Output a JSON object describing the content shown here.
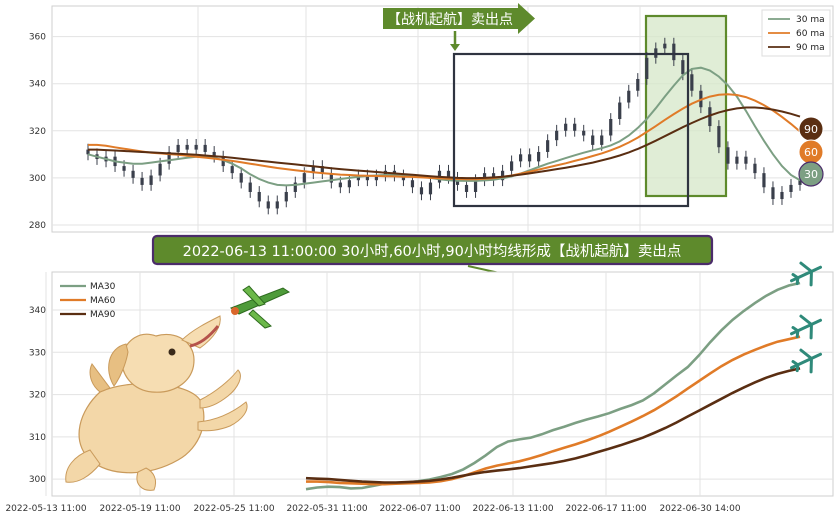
{
  "top_annotation": "【战机起航】卖出点",
  "banner": "2022-06-13 11:00:00 30小时,60小时,90小时均线形成【战机起航】卖出点",
  "colors": {
    "ma30": "#7c9f83",
    "ma60": "#e07b28",
    "ma90": "#5a2e12",
    "candle": "#3a3f4b",
    "highlight_fill": "#d6e7c8",
    "highlight_stroke": "#5e8a2c",
    "banner_fill": "#5e8a2c",
    "banner_stroke": "#4b2c6a"
  },
  "chart_data": [
    {
      "type": "candlestick",
      "ylim": [
        277,
        373
      ],
      "yticks": [
        280,
        300,
        320,
        340,
        360
      ],
      "grid": true,
      "legend_position": "top-right",
      "legend": [
        "30 ma",
        "60 ma",
        "90 ma"
      ],
      "end_badges": [
        "90",
        "60",
        "30"
      ],
      "candles": [
        {
          "i": 0,
          "o": 312,
          "c": 310
        },
        {
          "i": 1,
          "o": 310,
          "c": 308
        },
        {
          "i": 2,
          "o": 307,
          "c": 309
        },
        {
          "i": 3,
          "o": 309,
          "c": 305
        },
        {
          "i": 4,
          "o": 305,
          "c": 303
        },
        {
          "i": 5,
          "o": 303,
          "c": 300
        },
        {
          "i": 6,
          "o": 300,
          "c": 297
        },
        {
          "i": 7,
          "o": 297,
          "c": 301
        },
        {
          "i": 8,
          "o": 301,
          "c": 306
        },
        {
          "i": 9,
          "o": 306,
          "c": 311
        },
        {
          "i": 10,
          "o": 311,
          "c": 314
        },
        {
          "i": 11,
          "o": 314,
          "c": 312
        },
        {
          "i": 12,
          "o": 312,
          "c": 314
        },
        {
          "i": 13,
          "o": 314,
          "c": 311
        },
        {
          "i": 14,
          "o": 311,
          "c": 309
        },
        {
          "i": 15,
          "o": 309,
          "c": 305
        },
        {
          "i": 16,
          "o": 305,
          "c": 302
        },
        {
          "i": 17,
          "o": 302,
          "c": 298
        },
        {
          "i": 18,
          "o": 298,
          "c": 294
        },
        {
          "i": 19,
          "o": 294,
          "c": 290
        },
        {
          "i": 20,
          "o": 290,
          "c": 287
        },
        {
          "i": 21,
          "o": 287,
          "c": 290
        },
        {
          "i": 22,
          "o": 290,
          "c": 294
        },
        {
          "i": 23,
          "o": 294,
          "c": 298
        },
        {
          "i": 24,
          "o": 298,
          "c": 302
        },
        {
          "i": 25,
          "o": 302,
          "c": 305
        },
        {
          "i": 26,
          "o": 305,
          "c": 302
        },
        {
          "i": 27,
          "o": 302,
          "c": 298
        },
        {
          "i": 28,
          "o": 298,
          "c": 296
        },
        {
          "i": 29,
          "o": 296,
          "c": 299
        },
        {
          "i": 30,
          "o": 299,
          "c": 301
        },
        {
          "i": 31,
          "o": 301,
          "c": 299
        },
        {
          "i": 32,
          "o": 299,
          "c": 301
        },
        {
          "i": 33,
          "o": 301,
          "c": 303
        },
        {
          "i": 34,
          "o": 303,
          "c": 301
        },
        {
          "i": 35,
          "o": 301,
          "c": 299
        },
        {
          "i": 36,
          "o": 299,
          "c": 296
        },
        {
          "i": 37,
          "o": 296,
          "c": 293
        },
        {
          "i": 38,
          "o": 293,
          "c": 298
        },
        {
          "i": 39,
          "o": 298,
          "c": 303
        },
        {
          "i": 40,
          "o": 303,
          "c": 300
        },
        {
          "i": 41,
          "o": 300,
          "c": 297
        },
        {
          "i": 42,
          "o": 297,
          "c": 294
        },
        {
          "i": 43,
          "o": 294,
          "c": 299
        },
        {
          "i": 44,
          "o": 299,
          "c": 302
        },
        {
          "i": 45,
          "o": 302,
          "c": 299
        },
        {
          "i": 46,
          "o": 299,
          "c": 303
        },
        {
          "i": 47,
          "o": 303,
          "c": 307
        },
        {
          "i": 48,
          "o": 307,
          "c": 310
        },
        {
          "i": 49,
          "o": 310,
          "c": 307
        },
        {
          "i": 50,
          "o": 307,
          "c": 311
        },
        {
          "i": 51,
          "o": 311,
          "c": 316
        },
        {
          "i": 52,
          "o": 316,
          "c": 320
        },
        {
          "i": 53,
          "o": 320,
          "c": 323
        },
        {
          "i": 54,
          "o": 323,
          "c": 320
        },
        {
          "i": 55,
          "o": 320,
          "c": 318
        },
        {
          "i": 56,
          "o": 318,
          "c": 314
        },
        {
          "i": 57,
          "o": 314,
          "c": 318
        },
        {
          "i": 58,
          "o": 318,
          "c": 325
        },
        {
          "i": 59,
          "o": 325,
          "c": 332
        },
        {
          "i": 60,
          "o": 332,
          "c": 337
        },
        {
          "i": 61,
          "o": 337,
          "c": 342
        },
        {
          "i": 62,
          "o": 342,
          "c": 351
        },
        {
          "i": 63,
          "o": 351,
          "c": 355
        },
        {
          "i": 64,
          "o": 355,
          "c": 357
        },
        {
          "i": 65,
          "o": 357,
          "c": 350
        },
        {
          "i": 66,
          "o": 350,
          "c": 344
        },
        {
          "i": 67,
          "o": 344,
          "c": 337
        },
        {
          "i": 68,
          "o": 337,
          "c": 330
        },
        {
          "i": 69,
          "o": 330,
          "c": 322
        },
        {
          "i": 70,
          "o": 322,
          "c": 313
        },
        {
          "i": 71,
          "o": 313,
          "c": 306
        },
        {
          "i": 72,
          "o": 306,
          "c": 309
        },
        {
          "i": 73,
          "o": 309,
          "c": 306
        },
        {
          "i": 74,
          "o": 306,
          "c": 302
        },
        {
          "i": 75,
          "o": 302,
          "c": 296
        },
        {
          "i": 76,
          "o": 296,
          "c": 291
        },
        {
          "i": 77,
          "o": 291,
          "c": 294
        },
        {
          "i": 78,
          "o": 294,
          "c": 297
        },
        {
          "i": 79,
          "o": 297,
          "c": 299
        }
      ],
      "series": [
        {
          "key": "ma30",
          "values": [
            310,
            309,
            308,
            307,
            306.5,
            306,
            306,
            306.5,
            307,
            307.5,
            308,
            308.5,
            309,
            309,
            308.5,
            307.5,
            306,
            304,
            301.5,
            299.5,
            298,
            297,
            296.8,
            297,
            297.5,
            298,
            298.5,
            299,
            299.5,
            300,
            300.5,
            300.8,
            301,
            301.2,
            301.3,
            301.2,
            301,
            300.6,
            300,
            299.4,
            299,
            298.8,
            298.7,
            298.7,
            298.9,
            299.2,
            299.8,
            300.6,
            301.8,
            303.2,
            304.6,
            306,
            307.2,
            308.4,
            309.6,
            310.7,
            311.7,
            312.6,
            313.8,
            315.5,
            318,
            321.2,
            325,
            329.6,
            334.5,
            339.2,
            343.5,
            346.3,
            346.8,
            345.6,
            343,
            339.3,
            334.5,
            328.5,
            322,
            315.8,
            310,
            305,
            301.2,
            299
          ]
        },
        {
          "key": "ma60",
          "values": [
            314,
            314,
            313.6,
            313,
            312.4,
            311.8,
            311.2,
            310.7,
            310.4,
            310.1,
            309.8,
            309.4,
            309,
            308.6,
            308.2,
            307.7,
            307.2,
            306.6,
            306,
            305.4,
            304.8,
            304.2,
            303.7,
            303.2,
            302.8,
            302.4,
            302,
            301.7,
            301.4,
            301.2,
            301,
            300.9,
            300.8,
            300.7,
            300.6,
            300.5,
            300.4,
            300.2,
            300,
            299.8,
            299.6,
            299.5,
            299.4,
            299.4,
            299.6,
            299.9,
            300.4,
            301,
            301.8,
            302.6,
            303.5,
            304.4,
            305.3,
            306.2,
            307.2,
            308.2,
            309.3,
            310.4,
            311.7,
            313.2,
            315,
            317.1,
            319.5,
            322,
            324.6,
            327.1,
            329.4,
            331.5,
            333.2,
            334.5,
            335.3,
            335.5,
            335.2,
            334.3,
            332.8,
            330.9,
            328.6,
            325.9,
            322.9,
            319.7
          ]
        },
        {
          "key": "ma90",
          "values": [
            312,
            312,
            311.8,
            311.6,
            311.4,
            311.2,
            311,
            310.8,
            310.6,
            310.4,
            310.2,
            310,
            309.8,
            309.5,
            309.2,
            308.9,
            308.5,
            308.1,
            307.7,
            307.3,
            306.9,
            306.5,
            306.1,
            305.7,
            305.3,
            304.9,
            304.5,
            304.1,
            303.7,
            303.4,
            303.1,
            302.8,
            302.5,
            302.2,
            301.9,
            301.6,
            301.3,
            301,
            300.7,
            300.4,
            300.2,
            300,
            299.9,
            299.9,
            300,
            300.2,
            300.5,
            300.9,
            301.4,
            301.9,
            302.5,
            303.1,
            303.7,
            304.3,
            305,
            305.7,
            306.5,
            307.4,
            308.4,
            309.5,
            310.8,
            312.3,
            314,
            315.8,
            317.7,
            319.6,
            321.5,
            323.3,
            325,
            326.5,
            327.8,
            328.8,
            329.5,
            329.9,
            329.9,
            329.6,
            329,
            328.2,
            327.2,
            326
          ]
        }
      ]
    },
    {
      "type": "line",
      "ylim": [
        296,
        349
      ],
      "yticks": [
        300,
        310,
        320,
        330,
        340
      ],
      "grid": true,
      "legend_position": "top-left",
      "xticks": [
        "2022-05-13 11:00",
        "2022-05-19 11:00",
        "2022-05-25 11:00",
        "2022-05-31 11:00",
        "2022-06-07 11:00",
        "2022-06-13 11:00",
        "2022-06-17 11:00",
        "2022-06-30 14:00"
      ],
      "series": [
        {
          "name": "MA30",
          "key": "ma30",
          "values": [
            297.6,
            298.0,
            298.2,
            298.1,
            297.8,
            297.9,
            298.4,
            298.9,
            299.1,
            299.2,
            299.5,
            299.9,
            300.5,
            301.2,
            302.3,
            303.8,
            305.6,
            307.6,
            308.9,
            309.4,
            309.8,
            310.6,
            311.6,
            312.4,
            313.3,
            314.1,
            314.8,
            315.6,
            316.6,
            317.5,
            318.6,
            320.3,
            322.4,
            324.5,
            326.5,
            329.3,
            332.4,
            335.2,
            337.7,
            339.8,
            341.7,
            343.4,
            344.8,
            345.8,
            346.4
          ]
        },
        {
          "name": "MA60",
          "key": "ma60",
          "values": [
            299.4,
            299.4,
            299.3,
            299.1,
            299.0,
            298.9,
            298.8,
            298.8,
            298.9,
            299.0,
            299.1,
            299.2,
            299.5,
            300.0,
            300.7,
            301.6,
            302.5,
            303.2,
            303.7,
            304.2,
            304.9,
            305.7,
            306.6,
            307.4,
            308.2,
            309.1,
            310.1,
            311.2,
            312.4,
            313.6,
            314.9,
            316.3,
            317.9,
            319.6,
            321.4,
            323.2,
            325.0,
            326.7,
            328.2,
            329.5,
            330.6,
            331.6,
            332.5,
            333.1,
            333.7
          ]
        },
        {
          "name": "MA90",
          "key": "ma90",
          "values": [
            300.2,
            300.1,
            300.0,
            299.8,
            299.6,
            299.4,
            299.3,
            299.2,
            299.2,
            299.3,
            299.4,
            299.6,
            299.9,
            300.3,
            300.8,
            301.3,
            301.7,
            302.0,
            302.3,
            302.6,
            303.0,
            303.4,
            303.8,
            304.3,
            304.9,
            305.6,
            306.4,
            307.2,
            308.0,
            308.9,
            309.8,
            310.9,
            312.1,
            313.4,
            314.8,
            316.2,
            317.6,
            319.0,
            320.4,
            321.7,
            322.9,
            324.0,
            324.9,
            325.6,
            326.2
          ]
        }
      ]
    }
  ]
}
